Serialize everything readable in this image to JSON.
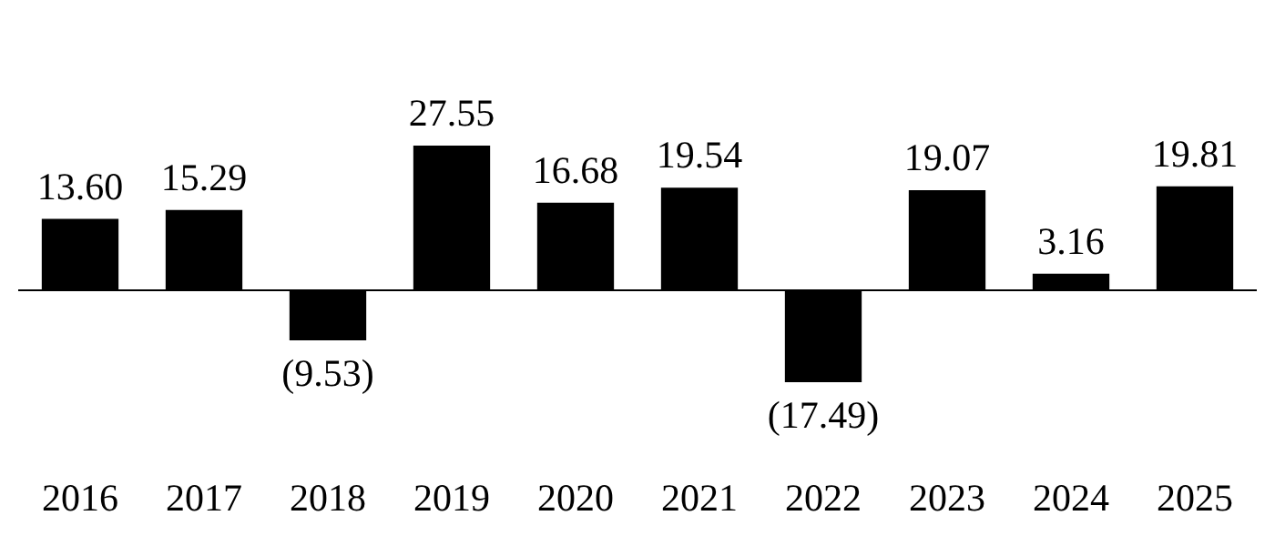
{
  "chart_data": {
    "type": "bar",
    "categories": [
      "2016",
      "2017",
      "2018",
      "2019",
      "2020",
      "2021",
      "2022",
      "2023",
      "2024",
      "2025"
    ],
    "values": [
      13.6,
      15.29,
      -9.53,
      27.55,
      16.68,
      19.54,
      -17.49,
      19.07,
      3.16,
      19.81
    ],
    "color": "#000000",
    "value_labels": [
      "13.60",
      "15.29",
      "(9.53)",
      "27.55",
      "16.68",
      "19.54",
      "(17.49)",
      "19.07",
      "3.16",
      "19.81"
    ]
  }
}
